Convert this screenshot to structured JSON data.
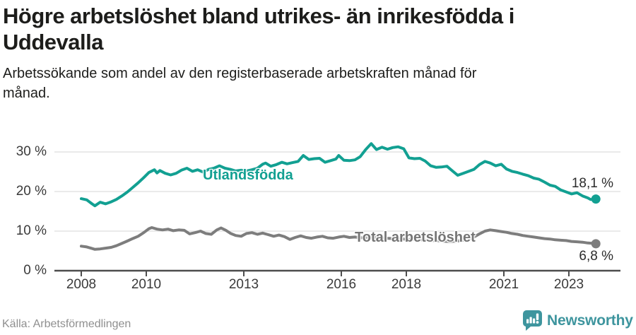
{
  "header": {
    "title_line1": "Högre arbetslöshet bland utrikes- än inrikesfödda i",
    "title_line2": "Uddevalla",
    "subtitle_line1": "Arbetssökande som andel av den registerbaserade arbetskraften månad för",
    "subtitle_line2": "månad."
  },
  "footer": {
    "source": "Källa: Arbetsförmedlingen",
    "brand": "Newsworthy"
  },
  "colors": {
    "accent_teal": "#12a092",
    "series_gray": "#7d7d7d",
    "label_gray": "#757575",
    "brand_teal": "#3e959e",
    "grid": "#dedede",
    "axis": "#4d4d4d",
    "text_dark": "#1d1d1b",
    "tick_text": "#3a3a3a",
    "source_text": "#8f8f8f"
  },
  "chart_data": {
    "type": "line",
    "title": "Högre arbetslöshet bland utrikes- än inrikesfödda i Uddevalla",
    "xlabel": "",
    "ylabel": "Arbetssökande som andel av den registerbaserade arbetskraften",
    "x_unit": "year (monthly data)",
    "xlim": [
      2007.2,
      2024.6
    ],
    "ylim": [
      0,
      33.5
    ],
    "grid": "horizontal",
    "legend_position": "inline-labels",
    "x_ticks": [
      2008,
      2010,
      2013,
      2016,
      2018,
      2021,
      2023
    ],
    "y_ticks": [
      {
        "value": 0,
        "label": "0 %"
      },
      {
        "value": 10,
        "label": "10 %"
      },
      {
        "value": 20,
        "label": "20 %"
      },
      {
        "value": 30,
        "label": "30 %"
      }
    ],
    "series": [
      {
        "name": "Utlandsfödda",
        "color": "#12a092",
        "end_value": 18.1,
        "end_label": "18,1 %",
        "points": [
          [
            2008.0,
            18.2
          ],
          [
            2008.17,
            17.9
          ],
          [
            2008.33,
            16.9
          ],
          [
            2008.42,
            16.4
          ],
          [
            2008.58,
            17.3
          ],
          [
            2008.75,
            16.9
          ],
          [
            2008.92,
            17.4
          ],
          [
            2009.08,
            18.0
          ],
          [
            2009.25,
            18.9
          ],
          [
            2009.42,
            19.9
          ],
          [
            2009.58,
            21.0
          ],
          [
            2009.75,
            22.2
          ],
          [
            2009.92,
            23.5
          ],
          [
            2010.08,
            24.8
          ],
          [
            2010.25,
            25.5
          ],
          [
            2010.33,
            24.7
          ],
          [
            2010.42,
            25.3
          ],
          [
            2010.58,
            24.6
          ],
          [
            2010.75,
            24.2
          ],
          [
            2010.92,
            24.6
          ],
          [
            2011.08,
            25.4
          ],
          [
            2011.25,
            25.9
          ],
          [
            2011.42,
            25.1
          ],
          [
            2011.58,
            25.5
          ],
          [
            2011.75,
            24.9
          ],
          [
            2011.92,
            25.6
          ],
          [
            2012.08,
            25.9
          ],
          [
            2012.25,
            26.5
          ],
          [
            2012.42,
            25.9
          ],
          [
            2012.58,
            25.6
          ],
          [
            2012.75,
            25.2
          ],
          [
            2012.92,
            25.4
          ],
          [
            2013.08,
            25.2
          ],
          [
            2013.25,
            25.5
          ],
          [
            2013.42,
            25.9
          ],
          [
            2013.58,
            26.9
          ],
          [
            2013.67,
            27.2
          ],
          [
            2013.83,
            26.4
          ],
          [
            2014.0,
            26.8
          ],
          [
            2014.17,
            27.4
          ],
          [
            2014.33,
            27.0
          ],
          [
            2014.5,
            27.3
          ],
          [
            2014.67,
            27.6
          ],
          [
            2014.83,
            29.1
          ],
          [
            2015.0,
            28.1
          ],
          [
            2015.17,
            28.3
          ],
          [
            2015.33,
            28.4
          ],
          [
            2015.5,
            27.4
          ],
          [
            2015.67,
            27.8
          ],
          [
            2015.83,
            28.2
          ],
          [
            2015.92,
            29.1
          ],
          [
            2016.08,
            27.9
          ],
          [
            2016.25,
            27.8
          ],
          [
            2016.42,
            28.0
          ],
          [
            2016.58,
            28.8
          ],
          [
            2016.75,
            30.6
          ],
          [
            2016.92,
            32.1
          ],
          [
            2017.08,
            30.6
          ],
          [
            2017.25,
            31.2
          ],
          [
            2017.42,
            30.7
          ],
          [
            2017.58,
            31.1
          ],
          [
            2017.75,
            31.3
          ],
          [
            2017.92,
            30.8
          ],
          [
            2018.08,
            28.5
          ],
          [
            2018.25,
            28.3
          ],
          [
            2018.42,
            28.4
          ],
          [
            2018.58,
            27.7
          ],
          [
            2018.75,
            26.5
          ],
          [
            2018.92,
            26.1
          ],
          [
            2019.08,
            26.2
          ],
          [
            2019.25,
            26.4
          ],
          [
            2019.42,
            25.2
          ],
          [
            2019.58,
            24.1
          ],
          [
            2019.75,
            24.6
          ],
          [
            2019.92,
            25.1
          ],
          [
            2020.08,
            25.6
          ],
          [
            2020.25,
            26.8
          ],
          [
            2020.42,
            27.6
          ],
          [
            2020.58,
            27.2
          ],
          [
            2020.75,
            26.5
          ],
          [
            2020.92,
            26.9
          ],
          [
            2021.08,
            25.7
          ],
          [
            2021.25,
            25.1
          ],
          [
            2021.42,
            24.8
          ],
          [
            2021.58,
            24.4
          ],
          [
            2021.75,
            24.0
          ],
          [
            2021.92,
            23.4
          ],
          [
            2022.08,
            23.1
          ],
          [
            2022.25,
            22.4
          ],
          [
            2022.42,
            21.6
          ],
          [
            2022.58,
            21.3
          ],
          [
            2022.75,
            20.4
          ],
          [
            2022.92,
            19.9
          ],
          [
            2023.08,
            19.4
          ],
          [
            2023.25,
            19.7
          ],
          [
            2023.42,
            18.9
          ],
          [
            2023.58,
            18.4
          ],
          [
            2023.67,
            18.0
          ],
          [
            2023.83,
            18.1
          ]
        ]
      },
      {
        "name": "Total arbetslöshet",
        "color": "#7d7d7d",
        "end_value": 6.8,
        "end_label": "6,8 %",
        "points": [
          [
            2008.0,
            6.2
          ],
          [
            2008.17,
            6.0
          ],
          [
            2008.33,
            5.6
          ],
          [
            2008.42,
            5.4
          ],
          [
            2008.58,
            5.5
          ],
          [
            2008.75,
            5.7
          ],
          [
            2008.92,
            5.9
          ],
          [
            2009.08,
            6.3
          ],
          [
            2009.25,
            6.9
          ],
          [
            2009.42,
            7.5
          ],
          [
            2009.58,
            8.1
          ],
          [
            2009.75,
            8.7
          ],
          [
            2009.92,
            9.6
          ],
          [
            2010.08,
            10.6
          ],
          [
            2010.17,
            10.9
          ],
          [
            2010.33,
            10.5
          ],
          [
            2010.5,
            10.3
          ],
          [
            2010.67,
            10.5
          ],
          [
            2010.83,
            10.1
          ],
          [
            2011.0,
            10.3
          ],
          [
            2011.17,
            10.2
          ],
          [
            2011.33,
            9.3
          ],
          [
            2011.5,
            9.6
          ],
          [
            2011.67,
            10.0
          ],
          [
            2011.83,
            9.4
          ],
          [
            2012.0,
            9.2
          ],
          [
            2012.17,
            10.3
          ],
          [
            2012.3,
            10.8
          ],
          [
            2012.45,
            10.2
          ],
          [
            2012.6,
            9.4
          ],
          [
            2012.75,
            8.9
          ],
          [
            2012.92,
            8.7
          ],
          [
            2013.08,
            9.4
          ],
          [
            2013.25,
            9.6
          ],
          [
            2013.42,
            9.2
          ],
          [
            2013.58,
            9.5
          ],
          [
            2013.75,
            9.1
          ],
          [
            2013.92,
            8.7
          ],
          [
            2014.08,
            9.0
          ],
          [
            2014.25,
            8.6
          ],
          [
            2014.42,
            7.9
          ],
          [
            2014.58,
            8.4
          ],
          [
            2014.75,
            8.8
          ],
          [
            2014.92,
            8.4
          ],
          [
            2015.08,
            8.2
          ],
          [
            2015.25,
            8.5
          ],
          [
            2015.42,
            8.7
          ],
          [
            2015.58,
            8.3
          ],
          [
            2015.75,
            8.2
          ],
          [
            2015.92,
            8.5
          ],
          [
            2016.08,
            8.7
          ],
          [
            2016.25,
            8.4
          ],
          [
            2016.42,
            8.5
          ],
          [
            2016.58,
            8.3
          ],
          [
            2016.75,
            8.4
          ],
          [
            2016.92,
            8.5
          ],
          [
            2017.08,
            8.4
          ],
          [
            2017.25,
            8.3
          ],
          [
            2017.42,
            8.2
          ],
          [
            2017.58,
            8.1
          ],
          [
            2017.75,
            8.1
          ],
          [
            2017.92,
            8.0
          ],
          [
            2018.08,
            7.9
          ],
          [
            2018.25,
            7.9
          ],
          [
            2018.42,
            7.8
          ],
          [
            2018.58,
            7.7
          ],
          [
            2018.75,
            7.6
          ],
          [
            2018.92,
            7.6
          ],
          [
            2019.08,
            7.5
          ],
          [
            2019.25,
            7.4
          ],
          [
            2019.42,
            7.4
          ],
          [
            2019.58,
            7.5
          ],
          [
            2019.75,
            7.7
          ],
          [
            2019.92,
            8.0
          ],
          [
            2020.08,
            8.5
          ],
          [
            2020.25,
            9.3
          ],
          [
            2020.42,
            10.0
          ],
          [
            2020.58,
            10.3
          ],
          [
            2020.75,
            10.1
          ],
          [
            2020.92,
            9.9
          ],
          [
            2021.08,
            9.7
          ],
          [
            2021.25,
            9.4
          ],
          [
            2021.42,
            9.2
          ],
          [
            2021.58,
            8.9
          ],
          [
            2021.75,
            8.7
          ],
          [
            2021.92,
            8.5
          ],
          [
            2022.08,
            8.3
          ],
          [
            2022.25,
            8.1
          ],
          [
            2022.42,
            8.0
          ],
          [
            2022.58,
            7.8
          ],
          [
            2022.75,
            7.7
          ],
          [
            2022.92,
            7.6
          ],
          [
            2023.08,
            7.4
          ],
          [
            2023.25,
            7.3
          ],
          [
            2023.42,
            7.2
          ],
          [
            2023.58,
            7.0
          ],
          [
            2023.75,
            6.9
          ],
          [
            2023.83,
            6.8
          ]
        ]
      }
    ]
  }
}
